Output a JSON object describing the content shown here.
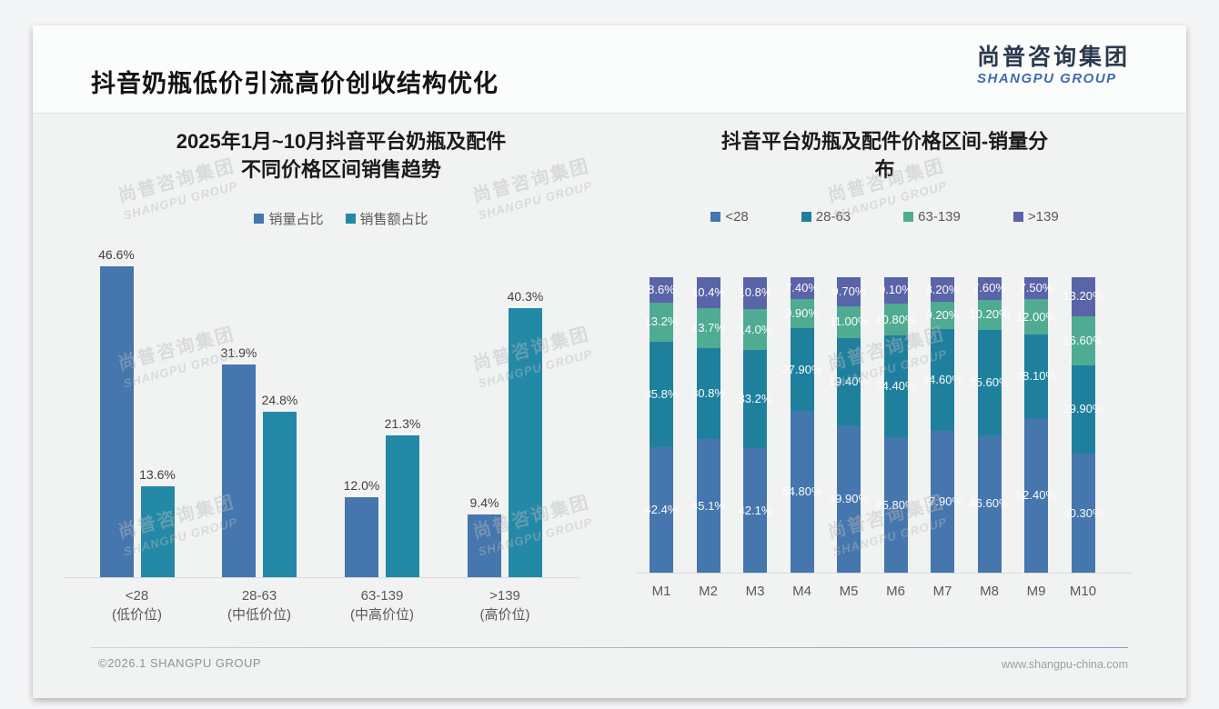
{
  "header": {
    "title": "抖音奶瓶低价引流高价创收结构优化",
    "logo_cn": "尚普咨询集团",
    "logo_en": "SHANGPU GROUP"
  },
  "watermark": {
    "line1": "尚普咨询集团",
    "line2": "SHANGPU GROUP"
  },
  "footer": {
    "copyright": "©2026.1 SHANGPU GROUP",
    "website": "www.shangpu-china.com"
  },
  "colors": {
    "blue": "#4576ad",
    "teal_left": "#2389a6",
    "teal": "#1f809e",
    "green": "#4fab92",
    "slate": "#5a64a8",
    "slide_bg": "#f1f2f2",
    "axis_line": "#d9d9d9",
    "label_dark": "#404040",
    "label_gray": "#595959"
  },
  "chart_data": [
    {
      "type": "bar",
      "title": "2025年1月~10月抖音平台奶瓶及配件不同价格区间销售趋势",
      "title_lines": [
        "2025年1月~10月抖音平台奶瓶及配件",
        "不同价格区间销售趋势"
      ],
      "categories": [
        "<28",
        "28-63",
        "63-139",
        ">139"
      ],
      "category_sublabels": [
        "(低价位)",
        "(中低价位)",
        "(中高价位)",
        "(高价位)"
      ],
      "xlabel": "",
      "ylabel": "",
      "ylim": [
        0,
        47
      ],
      "grid": false,
      "legend_position": "top",
      "series": [
        {
          "name": "销量占比",
          "color": "#4576ad",
          "values": [
            46.6,
            31.9,
            12.0,
            9.4
          ],
          "labels": [
            "46.6%",
            "31.9%",
            "12.0%",
            "9.4%"
          ]
        },
        {
          "name": "销售额占比",
          "color": "#2389a6",
          "values": [
            13.6,
            24.8,
            21.3,
            40.3
          ],
          "labels": [
            "13.6%",
            "24.8%",
            "21.3%",
            "40.3%"
          ]
        }
      ]
    },
    {
      "type": "stacked-bar",
      "title": "抖音平台奶瓶及配件价格区间-销量分布",
      "title_lines": [
        "抖音平台奶瓶及配件价格区间-销量分",
        "布"
      ],
      "categories": [
        "M1",
        "M2",
        "M3",
        "M4",
        "M5",
        "M6",
        "M7",
        "M8",
        "M9",
        "M10"
      ],
      "xlabel": "",
      "ylabel": "",
      "ylim": [
        0,
        100
      ],
      "grid": false,
      "legend_position": "top",
      "series": [
        {
          "name": "<28",
          "color": "#4576ad",
          "values": [
            42.4,
            45.1,
            42.1,
            54.8,
            49.9,
            45.8,
            47.9,
            46.6,
            52.4,
            40.3
          ],
          "labels": [
            "42.4%",
            "45.1%",
            "42.1%",
            "54.80%",
            "49.90%",
            "45.80%",
            "47.90%",
            "46.60%",
            "52.40%",
            "40.30%"
          ]
        },
        {
          "name": "28-63",
          "color": "#1f809e",
          "values": [
            35.8,
            30.8,
            33.2,
            27.9,
            29.4,
            34.4,
            34.6,
            35.6,
            28.1,
            29.9
          ],
          "labels": [
            "35.8%",
            "30.8%",
            "33.2%",
            "27.90%",
            "29.40%",
            "34.40%",
            "34.60%",
            "35.60%",
            "28.10%",
            "29.90%"
          ]
        },
        {
          "name": "63-139",
          "color": "#4fab92",
          "values": [
            13.2,
            13.7,
            14.0,
            9.9,
            11.0,
            10.8,
            9.2,
            10.2,
            12.0,
            16.6
          ],
          "labels": [
            "13.2%",
            "13.7%",
            "14.0%",
            "9.90%",
            "11.00%",
            "10.80%",
            "9.20%",
            "10.20%",
            "12.00%",
            "16.60%"
          ]
        },
        {
          "name": ">139",
          "color": "#5a64a8",
          "values": [
            8.6,
            10.4,
            10.8,
            7.4,
            9.7,
            9.1,
            8.2,
            7.6,
            7.5,
            13.2
          ],
          "labels": [
            "8.6%",
            "10.4%",
            "10.8%",
            "7.40%",
            "9.70%",
            "9.10%",
            "8.20%",
            "7.60%",
            "7.50%",
            "13.20%"
          ]
        }
      ]
    }
  ]
}
